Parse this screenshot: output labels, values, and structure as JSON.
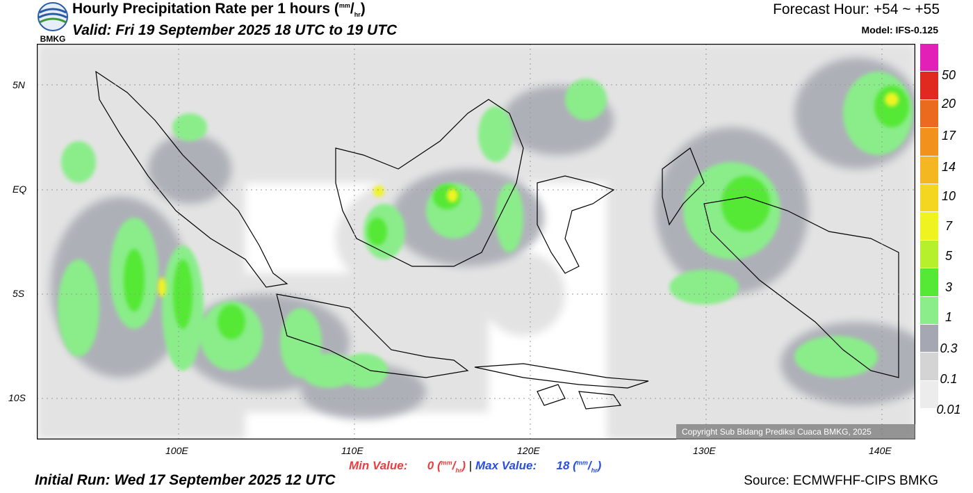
{
  "header": {
    "logo_text": "BMKG",
    "title_main": "Hourly Precipitation Rate per 1 hours (",
    "title_unit_num": "mm",
    "title_unit_den": "hr",
    "title_close": ")",
    "valid": "Valid: Fri 19 September 2025 18 UTC to 19 UTC",
    "forecast_hour": "Forecast Hour: +54 ~ +55",
    "model": "Model: IFS-0.125"
  },
  "axes": {
    "lat_labels": [
      "5N",
      "EQ",
      "5S",
      "10S"
    ],
    "lon_labels": [
      "100E",
      "110E",
      "120E",
      "130E",
      "140E"
    ]
  },
  "legend": {
    "labels": [
      "50",
      "20",
      "17",
      "14",
      "10",
      "7",
      "5",
      "3",
      "1",
      "0.3",
      "0.1",
      "0.01"
    ],
    "colors": [
      "#e21fb6",
      "#e02a20",
      "#ea6a1e",
      "#f2921d",
      "#f4b621",
      "#f4d520",
      "#eff420",
      "#b6f02c",
      "#55e835",
      "#8aed8a",
      "#a5a8b2",
      "#d4d4d4",
      "#ececec"
    ]
  },
  "stats": {
    "min_label": "Min Value:",
    "min_value": "0",
    "max_label": "Max Value:",
    "max_value": "18",
    "unit_num": "mm",
    "unit_den": "hr",
    "separator": "|"
  },
  "footer": {
    "initial_run": "Initial Run: Wed 17 September 2025 12 UTC",
    "source": "Source: ECMWFHF-CIPS BMKG",
    "copyright": "Copyright Sub Bidang Prediksi Cuaca BMKG, 2025"
  }
}
